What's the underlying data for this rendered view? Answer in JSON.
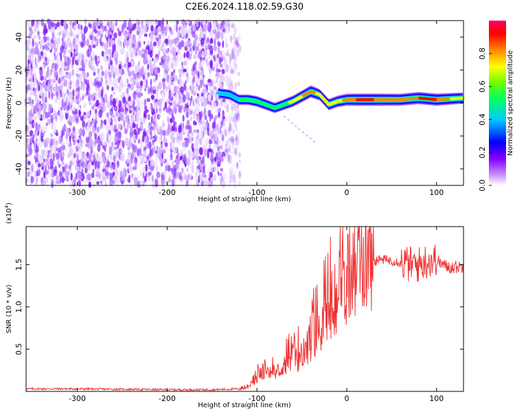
{
  "title": "C2E6.2024.118.02.59.G30",
  "chart_data": [
    {
      "type": "heatmap",
      "name": "spectrogram",
      "xlabel": "Height of straight line (km)",
      "ylabel": "Frequency (Hz)",
      "xlim": [
        -357,
        130
      ],
      "ylim": [
        -50,
        50
      ],
      "xticks": [
        -300,
        -200,
        -100,
        0,
        100
      ],
      "xtick_labels": [
        "-300",
        "-200",
        "-100",
        "0",
        "100"
      ],
      "yticks": [
        -40,
        -20,
        0,
        20,
        40
      ],
      "ytick_labels": [
        "-40",
        "-20",
        "0",
        "20",
        "40"
      ],
      "noise_region_x": [
        -357,
        -125
      ],
      "ridge": {
        "x": [
          -143,
          -130,
          -120,
          -110,
          -100,
          -90,
          -80,
          -70,
          -60,
          -50,
          -40,
          -30,
          -20,
          -10,
          0,
          10,
          30,
          60,
          80,
          100,
          130
        ],
        "freq": [
          6,
          5,
          2,
          2,
          1,
          -1,
          -3,
          -1,
          1,
          4,
          7,
          5,
          -1,
          1,
          2,
          2,
          2,
          2,
          3,
          2,
          3
        ],
        "amplitude": [
          0.4,
          0.5,
          0.55,
          0.6,
          0.65,
          0.6,
          0.55,
          0.65,
          0.75,
          0.85,
          0.95,
          0.8,
          0.75,
          0.8,
          0.9,
          0.95,
          0.95,
          0.9,
          0.95,
          0.95,
          0.75
        ]
      },
      "colorbar": {
        "label": "Normalized spectral amplitude",
        "range": [
          0,
          1
        ],
        "ticks": [
          0.0,
          0.2,
          0.4,
          0.6,
          0.8
        ],
        "tick_labels": [
          "0.0",
          "0.2",
          "0.4",
          "0.6",
          "0.8"
        ],
        "colors": [
          "#ffffff",
          "#cc99ff",
          "#8800ff",
          "#0000ff",
          "#00ccff",
          "#00ff66",
          "#66ff00",
          "#ffff00",
          "#ff8800",
          "#ff0000",
          "#ff0066"
        ]
      }
    },
    {
      "type": "line",
      "name": "snr",
      "xlabel": "Height of straight line (km)",
      "ylabel": "SNR (10 * v/v)",
      "multiplier_label": "(x10",
      "multiplier_exp": "4",
      "multiplier_close": ")",
      "xlim": [
        -357,
        130
      ],
      "ylim": [
        0,
        1.95
      ],
      "xticks": [
        -300,
        -200,
        -100,
        0,
        100
      ],
      "xtick_labels": [
        "-300",
        "-200",
        "-100",
        "0",
        "100"
      ],
      "yticks": [
        0.5,
        1.0,
        1.5
      ],
      "ytick_labels": [
        "0.5",
        "1.0",
        "1.5"
      ],
      "color": "#ee3333",
      "series": [
        {
          "name": "SNR",
          "x": [
            -357,
            -300,
            -250,
            -200,
            -150,
            -120,
            -110,
            -100,
            -90,
            -80,
            -70,
            -60,
            -50,
            -40,
            -30,
            -20,
            -10,
            -5,
            0,
            10,
            20,
            30,
            40,
            50,
            60,
            70,
            80,
            90,
            100,
            110,
            120,
            130
          ],
          "y": [
            0.03,
            0.03,
            0.025,
            0.02,
            0.02,
            0.03,
            0.06,
            0.15,
            0.25,
            0.2,
            0.3,
            0.35,
            0.4,
            0.55,
            0.75,
            0.9,
            1.0,
            1.15,
            1.25,
            1.4,
            1.5,
            1.55,
            1.56,
            1.55,
            1.53,
            1.5,
            1.5,
            1.55,
            1.55,
            1.48,
            1.47,
            1.48
          ]
        }
      ]
    }
  ]
}
